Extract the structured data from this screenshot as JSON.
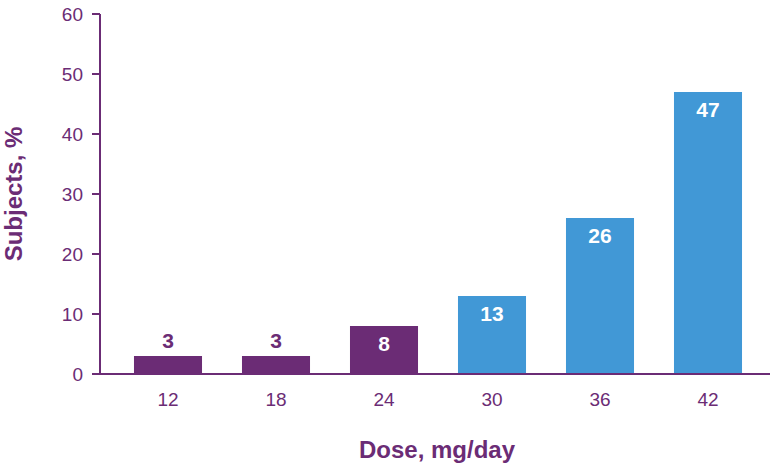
{
  "chart_data": {
    "type": "bar",
    "x_label": "Dose, mg/day",
    "y_label": "Subjects, %",
    "categories": [
      "12",
      "18",
      "24",
      "30",
      "36",
      "42"
    ],
    "values": [
      3,
      3,
      8,
      13,
      26,
      47
    ],
    "colors": [
      "#6b2c75",
      "#6b2c75",
      "#6b2c75",
      "#4198d6",
      "#4198d6",
      "#4198d6"
    ],
    "ylim": [
      0,
      60
    ],
    "yticks": [
      0,
      10,
      20,
      30,
      40,
      50,
      60
    ],
    "grid": false,
    "data_labels": true
  }
}
